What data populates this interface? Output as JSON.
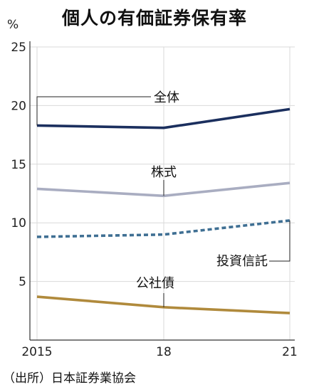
{
  "title": "個人の有価証券保有率",
  "source": "（出所）日本証券業協会",
  "chart_data": {
    "type": "line",
    "title": "個人の有価証券保有率",
    "unit_label": "%",
    "x": [
      "2015",
      "18",
      "21"
    ],
    "ylim": [
      0,
      25
    ],
    "yticks": [
      5,
      10,
      15,
      20,
      25
    ],
    "grid": true,
    "legend": "inline labels",
    "series": [
      {
        "name": "全体",
        "values": [
          18.3,
          18.1,
          19.7
        ],
        "color": "#1b2f5e",
        "dash": false
      },
      {
        "name": "株式",
        "values": [
          12.9,
          12.3,
          13.4
        ],
        "color": "#a9adc1",
        "dash": false
      },
      {
        "name": "投資信託",
        "values": [
          8.8,
          9.0,
          10.2
        ],
        "color": "#3f6f93",
        "dash": true
      },
      {
        "name": "公社債",
        "values": [
          3.7,
          2.8,
          2.3
        ],
        "color": "#b08a3c",
        "dash": false
      }
    ]
  }
}
